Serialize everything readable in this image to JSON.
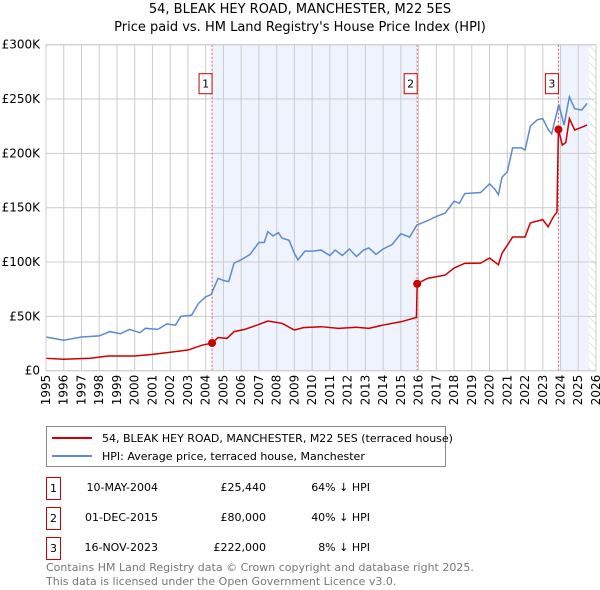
{
  "chart_data": {
    "type": "line",
    "title": "54, BLEAK HEY ROAD, MANCHESTER, M22 5ES",
    "subtitle": "Price paid vs. HM Land Registry's House Price Index (HPI)",
    "xlim": [
      1995,
      2026
    ],
    "ylim": [
      0,
      300000
    ],
    "x_ticks": [
      "1995",
      "1996",
      "1997",
      "1998",
      "1999",
      "2000",
      "2001",
      "2002",
      "2003",
      "2004",
      "2005",
      "2006",
      "2007",
      "2008",
      "2009",
      "2010",
      "2011",
      "2012",
      "2013",
      "2014",
      "2015",
      "2016",
      "2017",
      "2018",
      "2019",
      "2020",
      "2021",
      "2022",
      "2023",
      "2024",
      "2025",
      "2026"
    ],
    "y_ticks": [
      {
        "v": 0,
        "label": "£0"
      },
      {
        "v": 50000,
        "label": "£50K"
      },
      {
        "v": 100000,
        "label": "£100K"
      },
      {
        "v": 150000,
        "label": "£150K"
      },
      {
        "v": 200000,
        "label": "£200K"
      },
      {
        "v": 250000,
        "label": "£250K"
      },
      {
        "v": 300000,
        "label": "£300K"
      }
    ],
    "grid": true,
    "shaded_ranges": [
      [
        2004.36,
        2015.92
      ],
      [
        2023.88,
        2025.6
      ]
    ],
    "hatched_from": 2025.6,
    "series": [
      {
        "name": "54, BLEAK HEY ROAD, MANCHESTER, M22 5ES (terraced house)",
        "color": "#cc0000",
        "points": [
          [
            1995,
            11400
          ],
          [
            1996,
            10500
          ],
          [
            1997.5,
            11500
          ],
          [
            1998.5,
            13500
          ],
          [
            2000,
            13500
          ],
          [
            2001,
            15000
          ],
          [
            2002,
            17000
          ],
          [
            2003,
            19000
          ],
          [
            2003.8,
            23500
          ],
          [
            2004.36,
            25440
          ],
          [
            2004.7,
            30500
          ],
          [
            2005.2,
            29700
          ],
          [
            2005.6,
            36000
          ],
          [
            2006.2,
            38000
          ],
          [
            2007,
            42600
          ],
          [
            2007.5,
            45700
          ],
          [
            2008.3,
            43600
          ],
          [
            2009,
            37400
          ],
          [
            2009.5,
            39600
          ],
          [
            2010.5,
            40500
          ],
          [
            2011.5,
            39000
          ],
          [
            2012.5,
            40000
          ],
          [
            2013.2,
            39000
          ],
          [
            2014,
            42000
          ],
          [
            2015,
            45000
          ],
          [
            2015.88,
            49000
          ],
          [
            2015.92,
            80000
          ],
          [
            2016.5,
            85000
          ],
          [
            2017.5,
            88000
          ],
          [
            2018,
            94500
          ],
          [
            2018.6,
            98800
          ],
          [
            2019.5,
            99000
          ],
          [
            2020,
            103700
          ],
          [
            2020.5,
            97500
          ],
          [
            2020.7,
            108000
          ],
          [
            2021.3,
            123000
          ],
          [
            2022,
            123000
          ],
          [
            2022.3,
            136000
          ],
          [
            2023,
            139000
          ],
          [
            2023.3,
            132500
          ],
          [
            2023.6,
            141700
          ],
          [
            2023.8,
            146000
          ],
          [
            2023.88,
            222000
          ],
          [
            2024.1,
            207600
          ],
          [
            2024.3,
            210000
          ],
          [
            2024.5,
            232000
          ],
          [
            2024.8,
            221500
          ],
          [
            2025.5,
            226000
          ]
        ]
      },
      {
        "name": "HPI: Average price, terraced house, Manchester",
        "color": "#5b8bd0",
        "points": [
          [
            1995,
            31000
          ],
          [
            1996,
            28000
          ],
          [
            1997,
            31000
          ],
          [
            1998,
            32000
          ],
          [
            1998.6,
            36000
          ],
          [
            1999.2,
            34000
          ],
          [
            1999.7,
            38000
          ],
          [
            2000.3,
            35000
          ],
          [
            2000.6,
            39000
          ],
          [
            2001.3,
            38000
          ],
          [
            2001.8,
            43000
          ],
          [
            2002.3,
            42000
          ],
          [
            2002.6,
            50000
          ],
          [
            2003.2,
            51000
          ],
          [
            2003.6,
            62000
          ],
          [
            2004,
            68000
          ],
          [
            2004.3,
            70000
          ],
          [
            2004.7,
            85000
          ],
          [
            2005,
            83000
          ],
          [
            2005.3,
            82000
          ],
          [
            2005.6,
            99000
          ],
          [
            2006,
            102000
          ],
          [
            2006.5,
            107000
          ],
          [
            2007,
            118000
          ],
          [
            2007.3,
            118000
          ],
          [
            2007.5,
            128000
          ],
          [
            2007.8,
            124000
          ],
          [
            2008.1,
            127000
          ],
          [
            2008.3,
            122000
          ],
          [
            2008.7,
            120000
          ],
          [
            2009,
            108000
          ],
          [
            2009.2,
            102000
          ],
          [
            2009.6,
            110000
          ],
          [
            2010,
            110000
          ],
          [
            2010.5,
            111000
          ],
          [
            2011,
            106000
          ],
          [
            2011.3,
            111000
          ],
          [
            2011.7,
            106000
          ],
          [
            2012.1,
            112000
          ],
          [
            2012.5,
            105000
          ],
          [
            2012.9,
            111000
          ],
          [
            2013.2,
            113000
          ],
          [
            2013.6,
            107000
          ],
          [
            2014,
            112000
          ],
          [
            2014.5,
            116000
          ],
          [
            2015,
            126000
          ],
          [
            2015.5,
            123000
          ],
          [
            2015.9,
            134000
          ],
          [
            2016.5,
            138000
          ],
          [
            2017,
            142000
          ],
          [
            2017.5,
            145000
          ],
          [
            2018,
            156000
          ],
          [
            2018.3,
            154000
          ],
          [
            2018.6,
            163000
          ],
          [
            2019.5,
            164000
          ],
          [
            2020,
            172000
          ],
          [
            2020.3,
            167000
          ],
          [
            2020.5,
            162000
          ],
          [
            2020.7,
            178000
          ],
          [
            2021,
            183000
          ],
          [
            2021.3,
            205000
          ],
          [
            2021.8,
            205000
          ],
          [
            2022,
            203000
          ],
          [
            2022.3,
            225000
          ],
          [
            2022.7,
            231000
          ],
          [
            2023,
            232000
          ],
          [
            2023.3,
            222000
          ],
          [
            2023.5,
            218000
          ],
          [
            2023.9,
            245000
          ],
          [
            2024.2,
            226000
          ],
          [
            2024.5,
            252000
          ],
          [
            2024.8,
            241000
          ],
          [
            2025.2,
            240000
          ],
          [
            2025.5,
            246000
          ]
        ]
      }
    ],
    "sales": [
      {
        "label": "1",
        "x": 2004.36,
        "y": 25440
      },
      {
        "label": "2",
        "x": 2015.92,
        "y": 80000
      },
      {
        "label": "3",
        "x": 2023.88,
        "y": 222000
      }
    ]
  },
  "legend": {
    "red": "54, BLEAK HEY ROAD, MANCHESTER, M22 5ES (terraced house)",
    "blue": "HPI: Average price, terraced house, Manchester"
  },
  "table": [
    {
      "num": "1",
      "date": "10-MAY-2004",
      "price": "£25,440",
      "pct": "64% ↓ HPI"
    },
    {
      "num": "2",
      "date": "01-DEC-2015",
      "price": "£80,000",
      "pct": "40% ↓ HPI"
    },
    {
      "num": "3",
      "date": "16-NOV-2023",
      "price": "£222,000",
      "pct": "8% ↓ HPI"
    }
  ],
  "footer": [
    "Contains HM Land Registry data © Crown copyright and database right 2025.",
    "This data is licensed under the Open Government Licence v3.0."
  ]
}
